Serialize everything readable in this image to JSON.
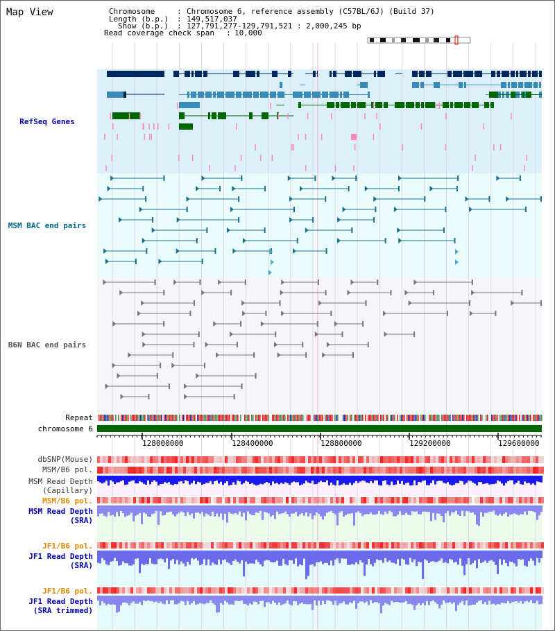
{
  "page": {
    "title": "Map View"
  },
  "info": {
    "chromosome_key": "Chromosome",
    "chromosome_val": "Chromosome 6, reference assembly (C57BL/6J) (Build 37)",
    "length_key": "Length (b.p.)",
    "length_val": "149,517,037",
    "show_key": "Show (b.p.)",
    "show_val": "127,791,277-129,791,521 : 2,000,245 bp",
    "coverage_key": "Read coverage check span",
    "coverage_val": "10,000"
  },
  "tracks": {
    "refseq": "RefSeq Genes",
    "msm_bac": "MSM BAC end pairs",
    "b6n_bac": "B6N BAC end pairs",
    "repeat": "Repeat",
    "chromosome": "chromosome 6",
    "dbsnp": "dbSNP(Mouse)",
    "msm_b6_pol_1": "MSM/B6 pol.",
    "msm_depth_cap_1": "MSM Read Depth",
    "msm_depth_cap_2": "(Capillary)",
    "msm_b6_pol_2": "MSM/B6 pol.",
    "msm_depth_sra_1": "MSM Read Depth",
    "msm_depth_sra_2": "(SRA)",
    "jf1_b6_pol_1": "JF1/B6 pol.",
    "jf1_depth_sra_1": "JF1 Read Depth",
    "jf1_depth_sra_2": "(SRA)",
    "jf1_b6_pol_2": "JF1/B6 pol.",
    "jf1_depth_trim_1": "JF1 Read Depth",
    "jf1_depth_trim_2": "(SRA trimmed)"
  },
  "axis": {
    "ticks": [
      "128000000",
      "128400000",
      "128800000",
      "129200000",
      "129600000"
    ]
  },
  "colors": {
    "refseq_label": "#0000aa",
    "msm_label": "#006688",
    "b6n_label": "#555555",
    "pol_label": "#e08800",
    "depth_label": "#0000aa",
    "gene_dark": "#002860",
    "gene_mid": "#3a8ab8",
    "gene_green": "#006600",
    "snp_red": "#ee2222",
    "depth_blue": "#2a2af0"
  }
}
